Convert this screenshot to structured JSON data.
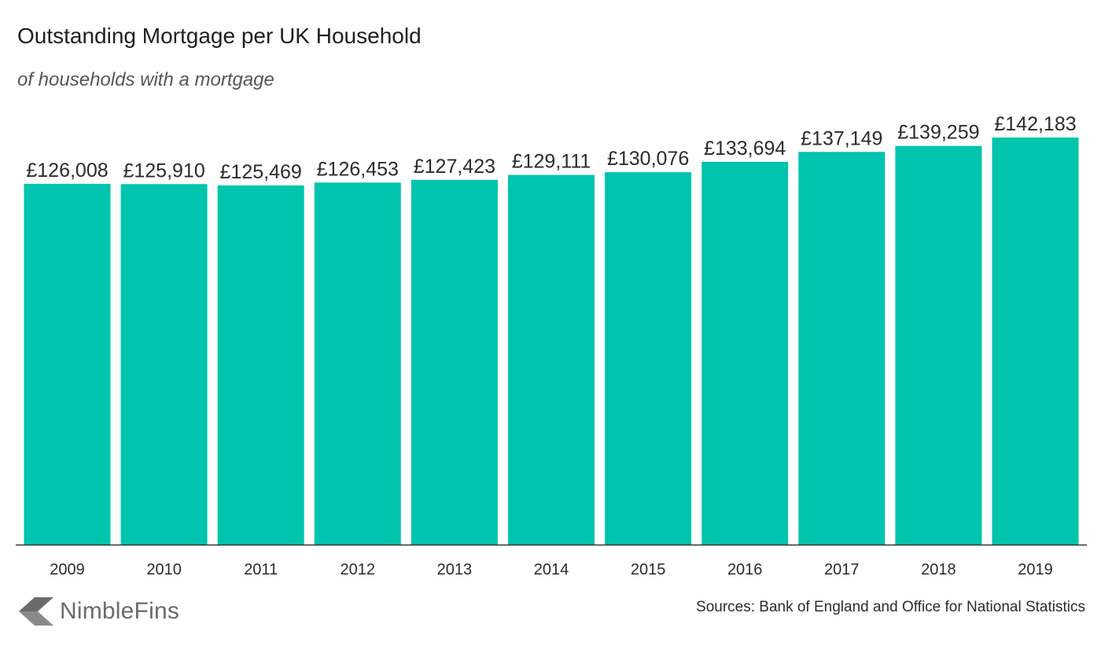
{
  "header": {
    "title": "Outstanding Mortgage per UK Household",
    "subtitle": "of households with a mortgage"
  },
  "footer": {
    "brand_name": "NimbleFins",
    "brand_icon": "chevron-left-logo-icon",
    "source": "Sources: Bank of England and Office for National Statistics"
  },
  "colors": {
    "bar": "#00c4ad",
    "axis": "#333333",
    "text": "#2b2b2b",
    "brand": "#6b6b6b"
  },
  "chart_data": {
    "type": "bar",
    "title": "Outstanding Mortgage per UK Household",
    "subtitle": "of households with a mortgage",
    "xlabel": "",
    "ylabel": "",
    "grid": false,
    "legend": "none",
    "ylim": [
      0,
      150000
    ],
    "categories": [
      "2009",
      "2010",
      "2011",
      "2012",
      "2013",
      "2014",
      "2015",
      "2016",
      "2017",
      "2018",
      "2019"
    ],
    "values": [
      126008,
      125910,
      125469,
      126453,
      127423,
      129111,
      130076,
      133694,
      137149,
      139259,
      142183
    ],
    "data_labels": [
      "£126,008",
      "£125,910",
      "£125,469",
      "£126,453",
      "£127,423",
      "£129,111",
      "£130,076",
      "£133,694",
      "£137,149",
      "£139,259",
      "£142,183"
    ]
  }
}
